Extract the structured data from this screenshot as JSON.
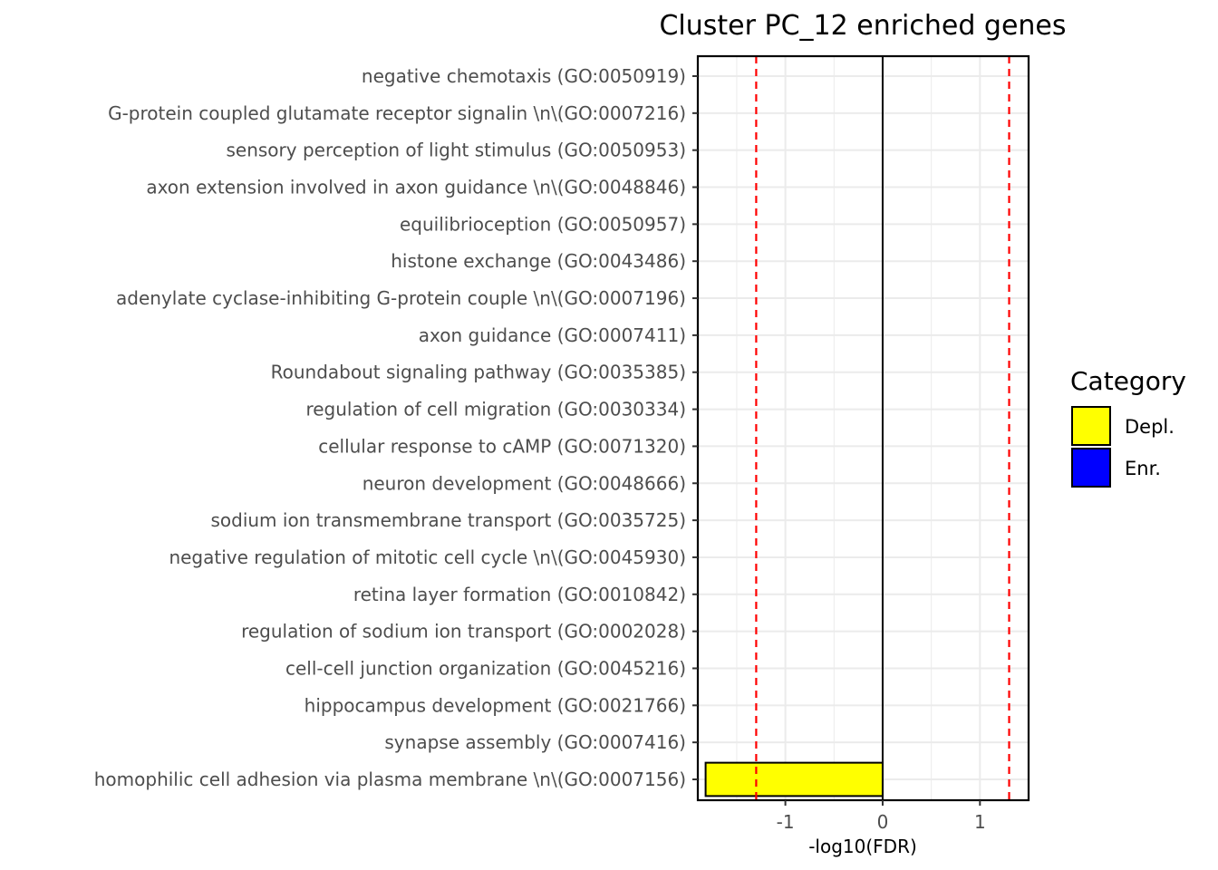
{
  "chart_data": {
    "type": "bar",
    "orientation": "horizontal",
    "title": "Cluster PC_12 enriched genes",
    "xlabel": "-log10(FDR)",
    "ylabel": "",
    "xlim": [
      -1.9,
      1.5
    ],
    "xticks": [
      -1,
      0,
      1
    ],
    "xtick_labels": [
      "-1",
      "0",
      "1"
    ],
    "threshold_lines": [
      -1.3,
      1.3
    ],
    "threshold_color": "#ff0000",
    "zero_line": 0,
    "grid": true,
    "legend": {
      "title": "Category",
      "position": "right",
      "entries": [
        {
          "label": "Depl.",
          "color": "#ffff00"
        },
        {
          "label": "Enr.",
          "color": "#0000ff"
        }
      ]
    },
    "categories": [
      "negative chemotaxis (GO:0050919)",
      "G-protein coupled glutamate receptor signalin \\n\\(GO:0007216)",
      "sensory perception of light stimulus (GO:0050953)",
      "axon extension involved in axon guidance  \\n\\(GO:0048846)",
      "equilibrioception (GO:0050957)",
      "histone exchange (GO:0043486)",
      "adenylate cyclase-inhibiting G-protein couple \\n\\(GO:0007196)",
      "axon guidance (GO:0007411)",
      "Roundabout signaling pathway (GO:0035385)",
      "regulation of cell migration (GO:0030334)",
      "cellular response to cAMP (GO:0071320)",
      "neuron development (GO:0048666)",
      "sodium ion transmembrane transport (GO:0035725)",
      "negative regulation of mitotic cell cycle  \\n\\(GO:0045930)",
      "retina layer formation (GO:0010842)",
      "regulation of sodium ion transport (GO:0002028)",
      "cell-cell junction organization (GO:0045216)",
      "hippocampus development (GO:0021766)",
      "synapse assembly (GO:0007416)",
      "homophilic cell adhesion via plasma membrane  \\n\\(GO:0007156)"
    ],
    "values": [
      0,
      0,
      0,
      0,
      0,
      0,
      0,
      0,
      0,
      0,
      0,
      0,
      0,
      0,
      0,
      0,
      0,
      0,
      0,
      -1.82
    ],
    "bar_category": [
      "Depl.",
      "Depl.",
      "Depl.",
      "Depl.",
      "Depl.",
      "Depl.",
      "Depl.",
      "Depl.",
      "Depl.",
      "Depl.",
      "Depl.",
      "Depl.",
      "Depl.",
      "Depl.",
      "Depl.",
      "Depl.",
      "Depl.",
      "Depl.",
      "Depl.",
      "Depl."
    ]
  }
}
